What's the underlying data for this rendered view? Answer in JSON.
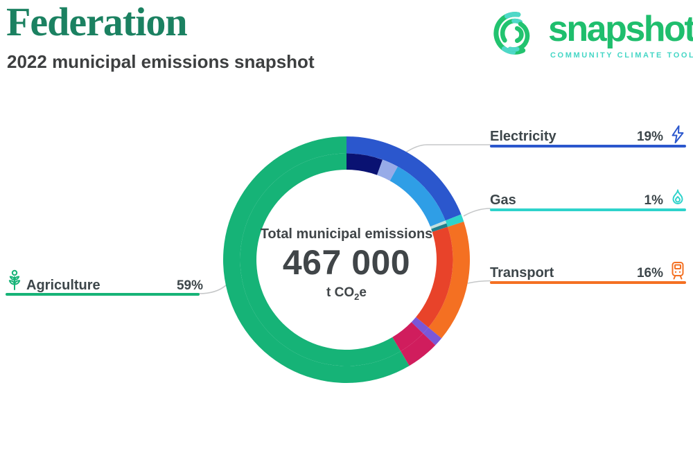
{
  "header": {
    "municipality": "Federation",
    "subtitle": "2022 municipal emissions snapshot",
    "title_color": "#1b8161",
    "subtitle_color": "#3d3f40"
  },
  "logo": {
    "wordmark": "snapshot",
    "tagline": "COMMUNITY CLIMATE TOOL",
    "green": "#1fbe6d",
    "teal": "#44d6c5"
  },
  "chart_data": {
    "type": "donut",
    "title": "Total municipal emissions",
    "center": {
      "title": "Total municipal emissions",
      "value": "467 000",
      "unit_prefix": "t CO",
      "unit_sub": "2",
      "unit_suffix": "e"
    },
    "labels": [
      {
        "name": "Electricity",
        "pct": "19%",
        "color": "#2b57cd",
        "icon": "lightning-icon",
        "side": "right"
      },
      {
        "name": "Gas",
        "pct": "1%",
        "color": "#2ed3cb",
        "icon": "flame-icon",
        "side": "right"
      },
      {
        "name": "Transport",
        "pct": "16%",
        "color": "#f47022",
        "icon": "train-icon",
        "side": "right"
      },
      {
        "name": "Agriculture",
        "pct": "59%",
        "color": "#16b377",
        "icon": "plant-icon",
        "side": "left"
      }
    ],
    "outer_segments": [
      {
        "name": "Electricity",
        "value": 19,
        "color": "#2b57cd"
      },
      {
        "name": "Gas",
        "value": 1,
        "color": "#2ed3cb"
      },
      {
        "name": "Transport",
        "value": 16,
        "color": "#f47022"
      },
      {
        "name": "Other A",
        "value": 1.2,
        "color": "#7a57d8"
      },
      {
        "name": "Other B",
        "value": 4.3,
        "color": "#d01d5d"
      },
      {
        "name": "Agriculture",
        "value": 58.5,
        "color": "#16b377"
      }
    ],
    "inner_segments": [
      {
        "name": "Electricity sub 1",
        "value": 5.5,
        "color": "#0a1272"
      },
      {
        "name": "Electricity sub 2",
        "value": 2.5,
        "color": "#97abe8"
      },
      {
        "name": "Electricity sub 3",
        "value": 11,
        "color": "#2f9ee6"
      },
      {
        "name": "Gas sub 1",
        "value": 0.45,
        "color": "#c3dfdd"
      },
      {
        "name": "Gas sub 2",
        "value": 0.55,
        "color": "#1f808d"
      },
      {
        "name": "Transport sub 1",
        "value": 16,
        "color": "#e8432a"
      },
      {
        "name": "Other A",
        "value": 1.2,
        "color": "#7a57d8"
      },
      {
        "name": "Other B",
        "value": 4.3,
        "color": "#d01d5d"
      },
      {
        "name": "Agriculture",
        "value": 58.5,
        "color": "#16b377"
      }
    ],
    "leader_color": "#c5c7c8"
  }
}
